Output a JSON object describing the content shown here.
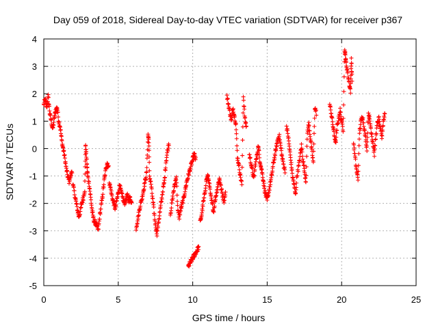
{
  "chart_data": {
    "type": "scatter",
    "title": "Day 059 of 2018, Sidereal Day-to-day VTEC variation (SDTVAR) for receiver p367",
    "xlabel": "GPS time / hours",
    "ylabel": "SDTVAR / TECUs",
    "xlim": [
      0,
      25
    ],
    "ylim": [
      -5,
      4
    ],
    "xticks": [
      "0",
      "5",
      "10",
      "15",
      "20",
      "25"
    ],
    "yticks": [
      "-5",
      "-4",
      "-3",
      "-2",
      "-1",
      "0",
      "1",
      "2",
      "3",
      "4"
    ],
    "grid": true,
    "marker": "+",
    "color": "#ff0000",
    "series": [
      {
        "name": "SDTVAR",
        "segments": [
          [
            [
              0.0,
              1.6
            ],
            [
              0.1,
              1.8
            ],
            [
              0.2,
              1.5
            ],
            [
              0.3,
              1.9
            ],
            [
              0.4,
              1.3
            ],
            [
              0.5,
              1.0
            ],
            [
              0.6,
              0.7
            ],
            [
              0.7,
              1.1
            ],
            [
              0.8,
              1.4
            ],
            [
              0.9,
              1.5
            ],
            [
              1.0,
              1.0
            ],
            [
              1.1,
              0.8
            ],
            [
              1.2,
              0.3
            ],
            [
              1.3,
              0.0
            ],
            [
              1.4,
              -0.3
            ],
            [
              1.5,
              -0.7
            ],
            [
              1.6,
              -1.0
            ],
            [
              1.7,
              -1.2
            ],
            [
              1.8,
              -1.0
            ],
            [
              1.9,
              -0.8
            ]
          ],
          [
            [
              1.95,
              -1.3
            ],
            [
              2.05,
              -1.6
            ],
            [
              2.15,
              -1.9
            ],
            [
              2.25,
              -2.2
            ],
            [
              2.35,
              -2.5
            ],
            [
              2.45,
              -2.3
            ],
            [
              2.55,
              -2.0
            ],
            [
              2.65,
              -1.8
            ],
            [
              2.75,
              -1.5
            ],
            [
              2.8,
              0.1
            ],
            [
              2.85,
              -0.2
            ],
            [
              2.9,
              -0.6
            ],
            [
              2.95,
              -1.0
            ],
            [
              3.05,
              -1.3
            ],
            [
              3.15,
              -1.8
            ],
            [
              3.25,
              -2.3
            ],
            [
              3.35,
              -2.6
            ],
            [
              3.45,
              -2.7
            ],
            [
              3.55,
              -2.8
            ],
            [
              3.65,
              -3.0
            ],
            [
              3.75,
              -2.5
            ],
            [
              3.85,
              -2.1
            ],
            [
              3.95,
              -1.7
            ],
            [
              4.05,
              -1.2
            ],
            [
              4.15,
              -0.8
            ],
            [
              4.25,
              -0.5
            ],
            [
              4.35,
              -0.7
            ]
          ],
          [
            [
              4.4,
              -1.2
            ],
            [
              4.5,
              -1.5
            ],
            [
              4.6,
              -1.8
            ],
            [
              4.7,
              -2.0
            ],
            [
              4.8,
              -2.2
            ],
            [
              4.9,
              -1.9
            ],
            [
              5.0,
              -1.6
            ],
            [
              5.1,
              -1.3
            ],
            [
              5.2,
              -1.6
            ],
            [
              5.3,
              -1.8
            ],
            [
              5.4,
              -2.0
            ],
            [
              5.5,
              -1.9
            ],
            [
              5.6,
              -1.7
            ],
            [
              5.7,
              -1.9
            ],
            [
              5.8,
              -1.8
            ],
            [
              5.9,
              -2.0
            ]
          ],
          [
            [
              6.2,
              -2.9
            ],
            [
              6.3,
              -2.6
            ],
            [
              6.4,
              -2.3
            ],
            [
              6.5,
              -2.0
            ],
            [
              6.6,
              -1.8
            ],
            [
              6.7,
              -1.5
            ],
            [
              6.8,
              -1.2
            ],
            [
              6.9,
              -0.9
            ],
            [
              7.0,
              0.5
            ],
            [
              7.05,
              0.3
            ],
            [
              7.1,
              -1.0
            ],
            [
              7.2,
              -1.3
            ],
            [
              7.3,
              -1.8
            ],
            [
              7.4,
              -2.3
            ],
            [
              7.5,
              -2.8
            ],
            [
              7.6,
              -3.1
            ],
            [
              7.7,
              -2.7
            ],
            [
              7.8,
              -2.3
            ],
            [
              7.9,
              -1.9
            ],
            [
              8.0,
              -1.5
            ],
            [
              8.1,
              -1.2
            ],
            [
              8.2,
              -0.5
            ],
            [
              8.3,
              -0.1
            ],
            [
              8.4,
              0.2
            ]
          ],
          [
            [
              8.5,
              -2.4
            ],
            [
              8.6,
              -2.0
            ],
            [
              8.7,
              -1.6
            ],
            [
              8.8,
              -1.3
            ],
            [
              8.9,
              -1.0
            ],
            [
              9.0,
              -2.3
            ],
            [
              9.1,
              -2.5
            ],
            [
              9.2,
              -2.2
            ],
            [
              9.3,
              -2.0
            ],
            [
              9.4,
              -1.8
            ],
            [
              9.5,
              -1.5
            ],
            [
              9.6,
              -1.2
            ],
            [
              9.7,
              -1.0
            ],
            [
              9.8,
              -0.8
            ],
            [
              9.9,
              -0.6
            ],
            [
              10.0,
              -0.4
            ],
            [
              10.1,
              -0.2
            ],
            [
              10.2,
              -0.4
            ]
          ],
          [
            [
              9.7,
              -4.3
            ],
            [
              9.8,
              -4.2
            ],
            [
              9.9,
              -4.1
            ],
            [
              10.0,
              -4.0
            ],
            [
              10.1,
              -3.9
            ],
            [
              10.2,
              -3.8
            ],
            [
              10.3,
              -3.7
            ],
            [
              10.4,
              -3.6
            ]
          ],
          [
            [
              10.5,
              -2.7
            ],
            [
              10.6,
              -2.4
            ],
            [
              10.7,
              -2.0
            ],
            [
              10.8,
              -1.7
            ],
            [
              10.9,
              -1.2
            ],
            [
              11.0,
              -1.0
            ],
            [
              11.1,
              -1.2
            ],
            [
              11.2,
              -1.7
            ],
            [
              11.3,
              -2.0
            ],
            [
              11.4,
              -2.3
            ],
            [
              11.5,
              -1.9
            ],
            [
              11.6,
              -1.6
            ],
            [
              11.7,
              -1.3
            ],
            [
              11.8,
              -1.1
            ],
            [
              11.9,
              -1.4
            ],
            [
              12.0,
              -1.7
            ],
            [
              12.1,
              -1.9
            ],
            [
              12.2,
              -1.6
            ]
          ],
          [
            [
              12.3,
              1.9
            ],
            [
              12.4,
              1.6
            ],
            [
              12.5,
              1.3
            ],
            [
              12.6,
              1.0
            ],
            [
              12.7,
              1.5
            ],
            [
              12.8,
              1.2
            ],
            [
              12.9,
              0.9
            ],
            [
              13.0,
              -0.3
            ],
            [
              13.1,
              -0.6
            ],
            [
              13.2,
              -1.0
            ],
            [
              13.3,
              -1.3
            ],
            [
              13.4,
              1.9
            ],
            [
              13.5,
              1.1
            ],
            [
              13.6,
              0.8
            ]
          ],
          [
            [
              13.8,
              -0.2
            ],
            [
              13.9,
              -0.5
            ],
            [
              14.0,
              -0.8
            ],
            [
              14.1,
              -1.1
            ],
            [
              14.2,
              -0.6
            ],
            [
              14.3,
              -0.3
            ],
            [
              14.4,
              0.1
            ],
            [
              14.5,
              -0.4
            ],
            [
              14.6,
              -0.7
            ],
            [
              14.7,
              -1.0
            ],
            [
              14.8,
              -1.4
            ],
            [
              14.9,
              -1.7
            ],
            [
              15.0,
              -1.9
            ],
            [
              15.1,
              -1.6
            ],
            [
              15.2,
              -1.3
            ],
            [
              15.3,
              -1.0
            ],
            [
              15.4,
              -0.6
            ],
            [
              15.5,
              -0.3
            ],
            [
              15.6,
              0.0
            ],
            [
              15.7,
              0.3
            ],
            [
              15.8,
              0.5
            ],
            [
              15.9,
              0.1
            ],
            [
              16.0,
              -0.3
            ],
            [
              16.1,
              -0.6
            ],
            [
              16.2,
              -0.8
            ]
          ],
          [
            [
              16.3,
              0.8
            ],
            [
              16.4,
              0.5
            ],
            [
              16.5,
              0.0
            ],
            [
              16.6,
              -0.5
            ],
            [
              16.7,
              -1.0
            ],
            [
              16.8,
              -1.3
            ],
            [
              16.9,
              -1.7
            ],
            [
              17.0,
              -1.0
            ],
            [
              17.1,
              -0.7
            ],
            [
              17.2,
              -0.3
            ],
            [
              17.3,
              0.1
            ],
            [
              17.4,
              -0.4
            ],
            [
              17.5,
              -0.8
            ],
            [
              17.6,
              -1.2
            ],
            [
              17.7,
              0.6
            ],
            [
              17.8,
              0.9
            ],
            [
              17.9,
              0.4
            ],
            [
              18.0,
              -0.1
            ],
            [
              18.1,
              -0.5
            ],
            [
              18.2,
              1.5
            ],
            [
              18.3,
              1.3
            ]
          ],
          [
            [
              19.2,
              1.6
            ],
            [
              19.3,
              1.3
            ],
            [
              19.4,
              0.9
            ],
            [
              19.5,
              0.5
            ],
            [
              19.6,
              0.2
            ],
            [
              19.7,
              0.8
            ],
            [
              19.8,
              1.1
            ],
            [
              19.9,
              1.4
            ],
            [
              20.0,
              1.0
            ],
            [
              20.1,
              0.7
            ],
            [
              20.2,
              3.6
            ],
            [
              20.25,
              3.4
            ],
            [
              20.3,
              3.1
            ],
            [
              20.4,
              2.8
            ],
            [
              20.5,
              2.4
            ],
            [
              20.6,
              2.1
            ],
            [
              20.65,
              3.3
            ],
            [
              20.7,
              2.5
            ]
          ],
          [
            [
              20.8,
              0.2
            ],
            [
              20.9,
              -0.3
            ],
            [
              21.0,
              -0.8
            ],
            [
              21.1,
              -1.1
            ],
            [
              21.2,
              0.6
            ],
            [
              21.3,
              1.0
            ],
            [
              21.4,
              1.2
            ],
            [
              21.5,
              0.8
            ],
            [
              21.6,
              0.4
            ],
            [
              21.7,
              0.0
            ],
            [
              21.8,
              1.3
            ],
            [
              21.9,
              1.0
            ],
            [
              22.0,
              0.6
            ],
            [
              22.1,
              0.2
            ],
            [
              22.2,
              -0.2
            ],
            [
              22.3,
              0.5
            ],
            [
              22.4,
              0.9
            ],
            [
              22.5,
              1.1
            ],
            [
              22.6,
              0.7
            ],
            [
              22.7,
              0.4
            ],
            [
              22.8,
              1.0
            ],
            [
              22.9,
              1.3
            ]
          ]
        ]
      }
    ]
  }
}
